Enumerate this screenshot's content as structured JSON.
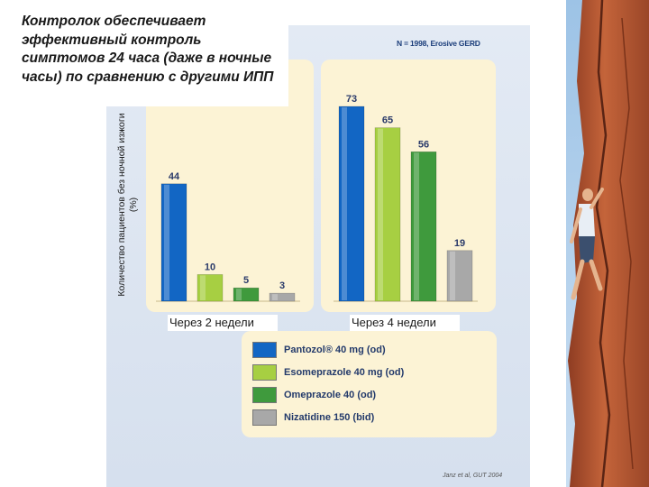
{
  "title": "Контролок обеспечивает эффективный контроль симптомов 24 часа (даже в ночные часы) по сравнению с другими ИПП",
  "colors": {
    "pantozol": "#1266c4",
    "esomeprazole": "#a7cf42",
    "omeprazole": "#3f9a3d",
    "nizatidine": "#a8a8a8"
  },
  "chart_data": {
    "type": "bar",
    "ylabel": "Количество пациентов без ночной изжоги (%)",
    "annotation": "N = 1998, Erosive GERD",
    "source": "Janz et al, GUT 2004",
    "categories": [
      "Через 2 недели",
      "Через 4 недели"
    ],
    "series": [
      {
        "name": "Pantozol® 40 mg (od)",
        "values": [
          44,
          73
        ]
      },
      {
        "name": "Esomeprazole 40 mg (od)",
        "values": [
          10,
          65
        ]
      },
      {
        "name": "Omeprazole 40 (od)",
        "values": [
          5,
          56
        ]
      },
      {
        "name": "Nizatidine 150 (bid)",
        "values": [
          3,
          19
        ]
      }
    ],
    "ylim": [
      0,
      80
    ],
    "grid": false,
    "legend_placement": "bottom"
  }
}
